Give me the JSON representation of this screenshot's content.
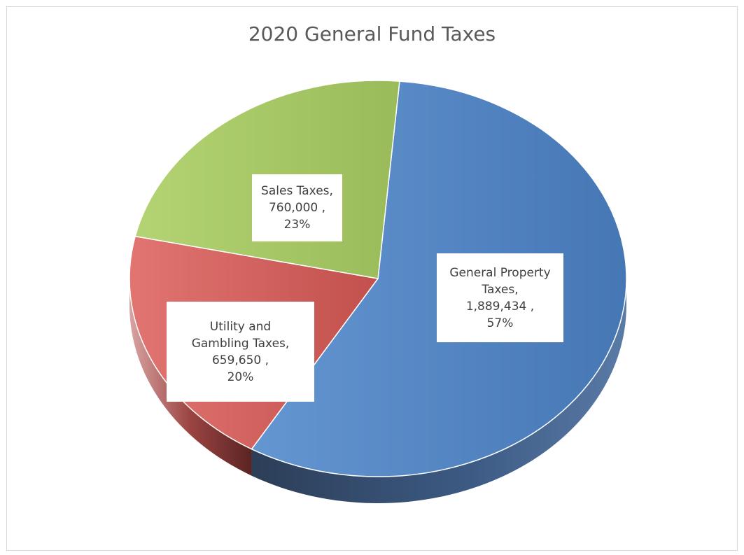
{
  "chart_data": {
    "type": "pie",
    "title": "2020 General Fund Taxes",
    "slices": [
      {
        "label_lines": [
          "General Property",
          "Taxes,"
        ],
        "value": 1889434,
        "value_text": "1,889,434 ,",
        "percent_text": "57%",
        "color": "#4f81bd"
      },
      {
        "label_lines": [
          "Utility and",
          "Gambling Taxes,"
        ],
        "value": 659650,
        "value_text": "659,650 ,",
        "percent_text": "20%",
        "color": "#c0504d"
      },
      {
        "label_lines": [
          "Sales Taxes,"
        ],
        "value": 760000,
        "value_text": "760,000 ,",
        "percent_text": "23%",
        "color": "#9bbb59"
      }
    ]
  }
}
